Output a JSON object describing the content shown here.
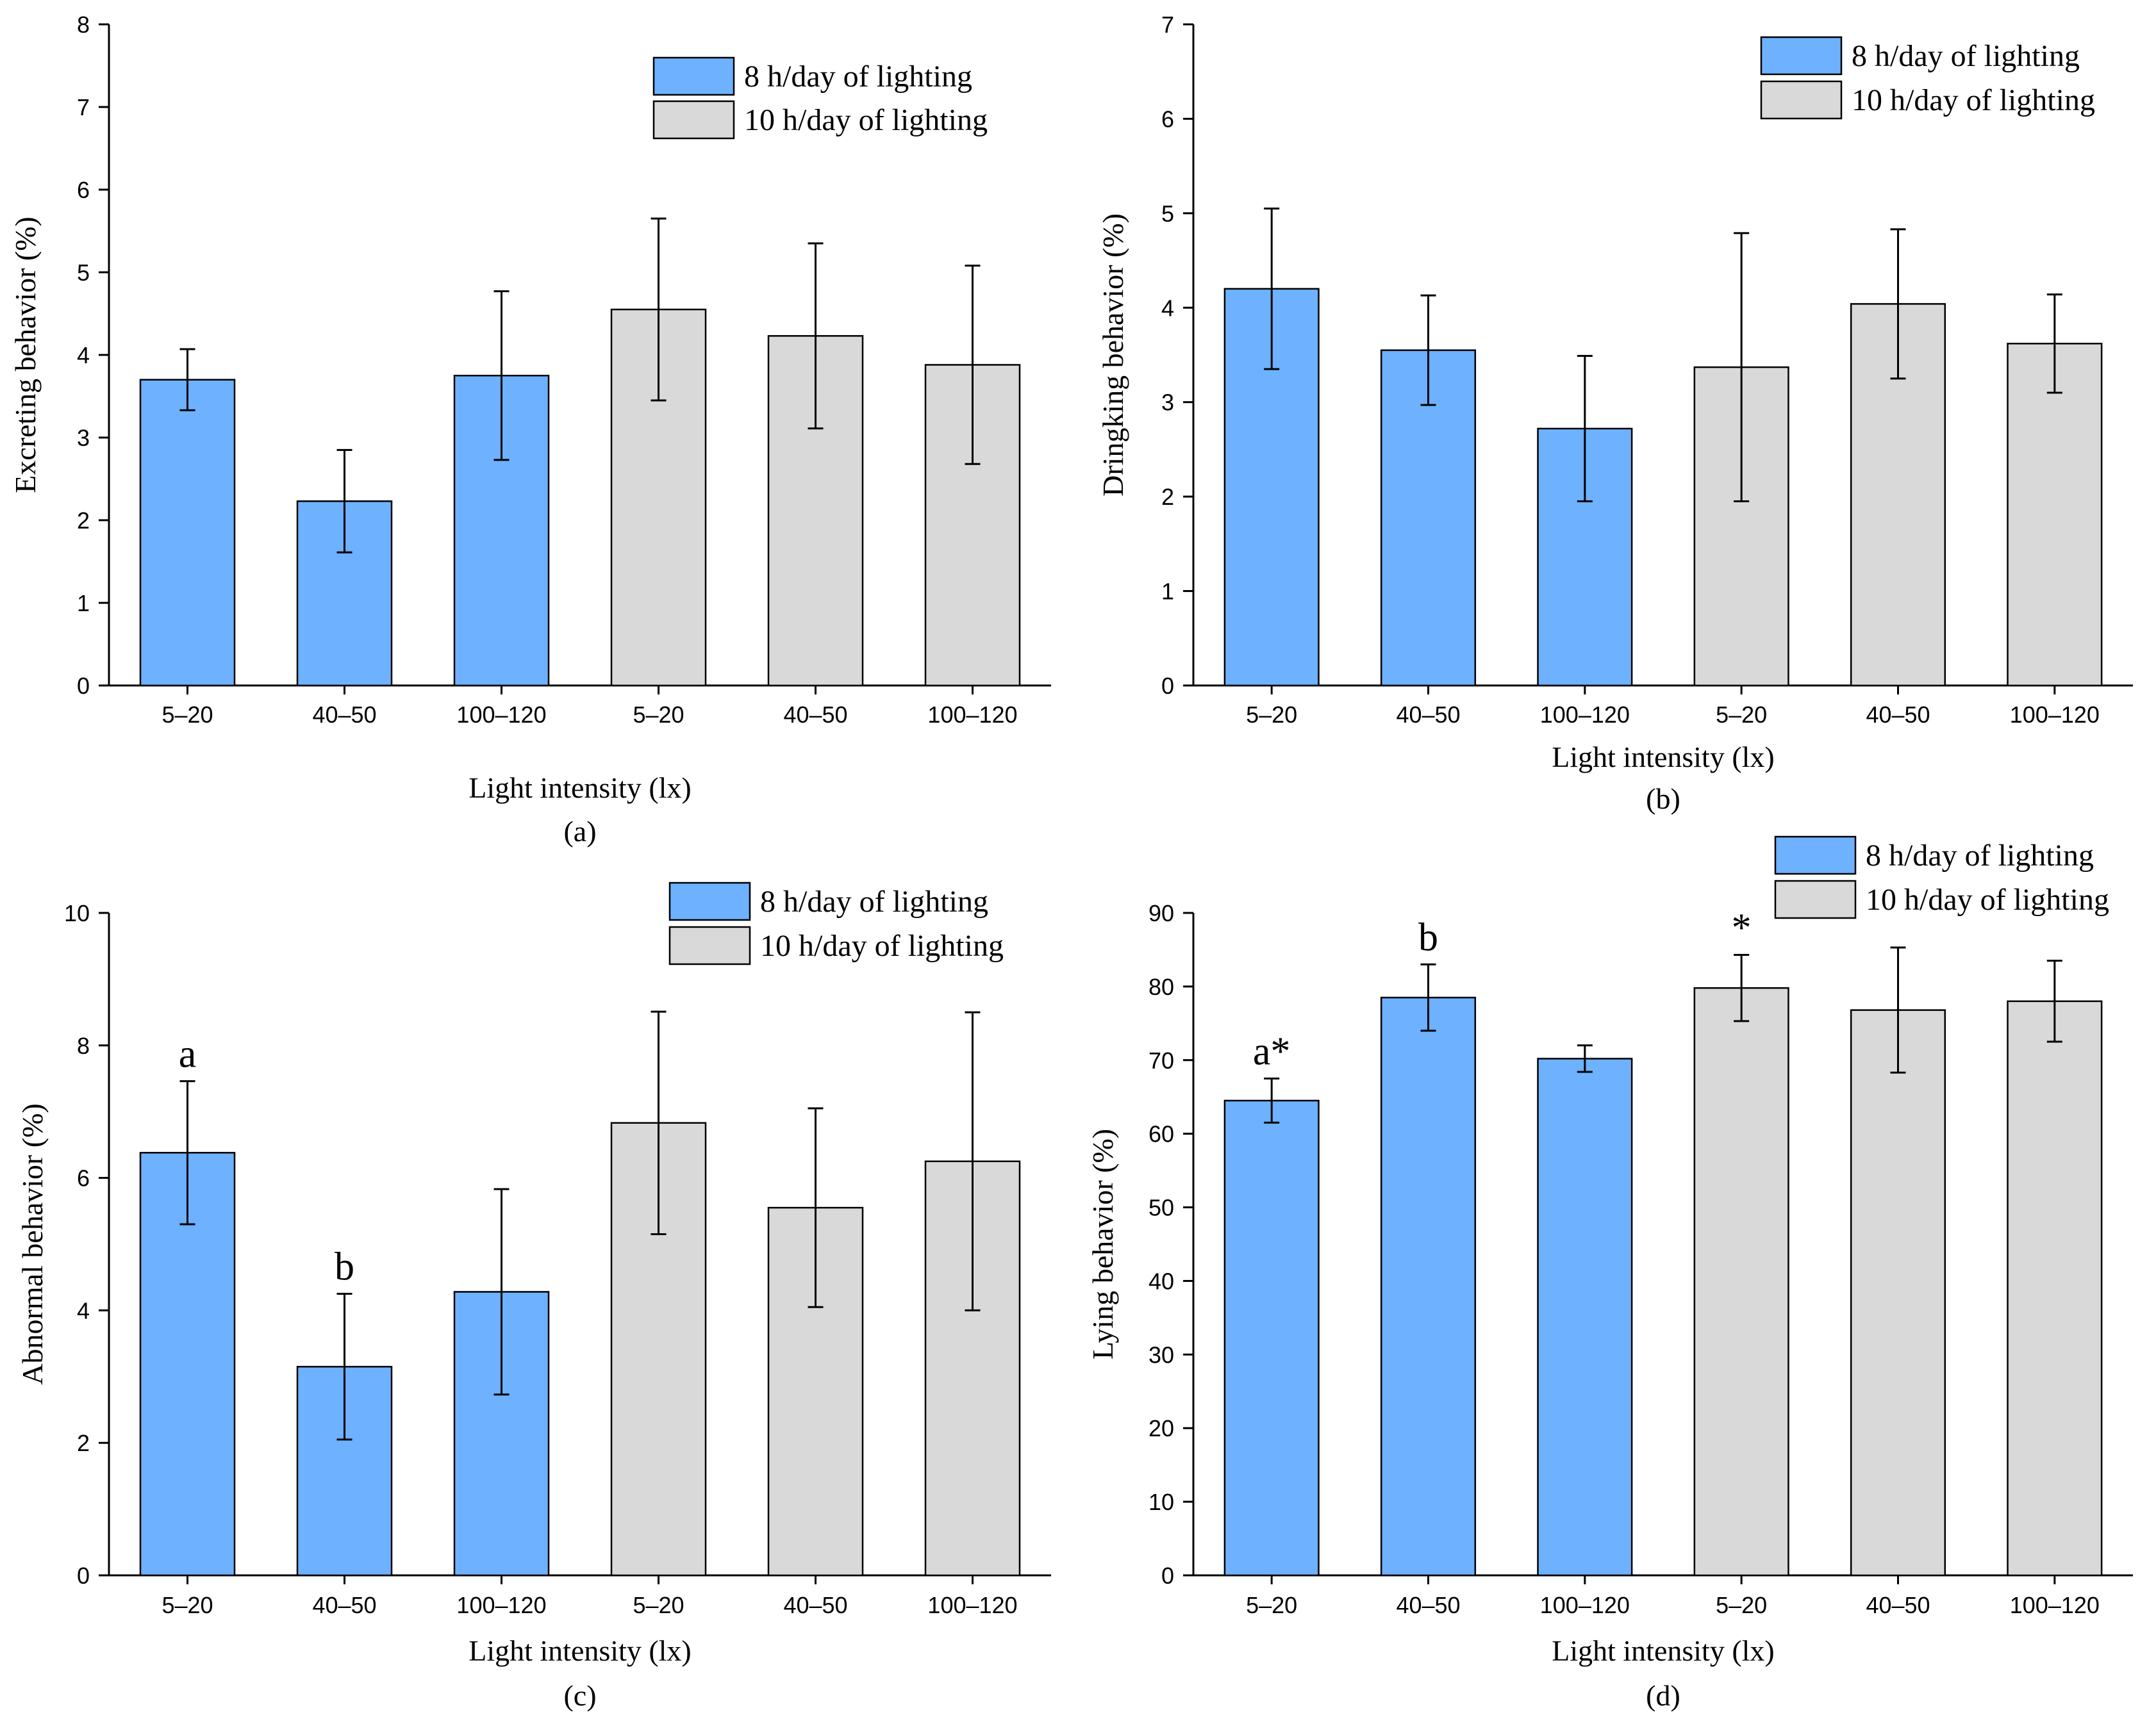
{
  "colors": {
    "series_8h": "#6db1ff",
    "series_10h": "#d9d9d9",
    "axis": "#000000"
  },
  "legend": [
    "8 h/day of lighting",
    "10 h/day of lighting"
  ],
  "chart_data": [
    {
      "type": "bar",
      "panel_label": "(a)",
      "xlabel": "Light intensity (lx)",
      "ylabel": "Excreting behavior (%)",
      "ylim": [
        0,
        8
      ],
      "yticks": [
        0,
        1,
        2,
        3,
        4,
        5,
        6,
        7,
        8
      ],
      "categories": [
        "5–20",
        "40–50",
        "100–120",
        "5–20",
        "40–50",
        "100–120"
      ],
      "groups": [
        "8 h/day of lighting",
        "8 h/day of lighting",
        "8 h/day of lighting",
        "10 h/day of lighting",
        "10 h/day of lighting",
        "10 h/day of lighting"
      ],
      "values": [
        3.7,
        2.23,
        3.75,
        4.55,
        4.23,
        3.88
      ],
      "errors": [
        0.37,
        0.62,
        1.02,
        1.1,
        1.12,
        1.2
      ],
      "annotations": [
        "",
        "",
        "",
        "",
        "",
        ""
      ]
    },
    {
      "type": "bar",
      "panel_label": "(b)",
      "xlabel": "Light intensity (lx)",
      "ylabel": "Dringking behavior (%)",
      "ylim": [
        0,
        7
      ],
      "yticks": [
        0,
        1,
        2,
        3,
        4,
        5,
        6,
        7
      ],
      "categories": [
        "5–20",
        "40–50",
        "100–120",
        "5–20",
        "40–50",
        "100–120"
      ],
      "groups": [
        "8 h/day of lighting",
        "8 h/day of lighting",
        "8 h/day of lighting",
        "10 h/day of lighting",
        "10 h/day of lighting",
        "10 h/day of lighting"
      ],
      "values": [
        4.2,
        3.55,
        2.72,
        3.37,
        4.04,
        3.62
      ],
      "errors": [
        0.85,
        0.58,
        0.77,
        1.42,
        0.79,
        0.52
      ],
      "annotations": [
        "",
        "",
        "",
        "",
        "",
        ""
      ]
    },
    {
      "type": "bar",
      "panel_label": "(c)",
      "xlabel": "Light intensity (lx)",
      "ylabel": "Abnormal behavior (%)",
      "ylim": [
        0,
        10
      ],
      "yticks": [
        0,
        2,
        4,
        6,
        8,
        10
      ],
      "categories": [
        "5–20",
        "40–50",
        "100–120",
        "5–20",
        "40–50",
        "100–120"
      ],
      "groups": [
        "8 h/day of lighting",
        "8 h/day of lighting",
        "8 h/day of lighting",
        "10 h/day of lighting",
        "10 h/day of lighting",
        "10 h/day of lighting"
      ],
      "values": [
        6.38,
        3.15,
        4.28,
        6.83,
        5.55,
        6.25
      ],
      "errors": [
        1.08,
        1.1,
        1.55,
        1.68,
        1.5,
        2.25
      ],
      "annotations": [
        "a",
        "b",
        "",
        "",
        "",
        ""
      ]
    },
    {
      "type": "bar",
      "panel_label": "(d)",
      "xlabel": "Light intensity (lx)",
      "ylabel": "Lying behavior (%)",
      "ylim": [
        0,
        90
      ],
      "yticks": [
        0,
        10,
        20,
        30,
        40,
        50,
        60,
        70,
        80,
        90
      ],
      "categories": [
        "5–20",
        "40–50",
        "100–120",
        "5–20",
        "40–50",
        "100–120"
      ],
      "groups": [
        "8 h/day of lighting",
        "8 h/day of lighting",
        "8 h/day of lighting",
        "10 h/day of lighting",
        "10 h/day of lighting",
        "10 h/day of lighting"
      ],
      "values": [
        64.5,
        78.5,
        70.2,
        79.8,
        76.8,
        78.0
      ],
      "errors": [
        3.0,
        4.5,
        1.8,
        4.5,
        8.5,
        5.5
      ],
      "annotations": [
        "a*",
        "b",
        "",
        "*",
        "",
        ""
      ]
    }
  ]
}
